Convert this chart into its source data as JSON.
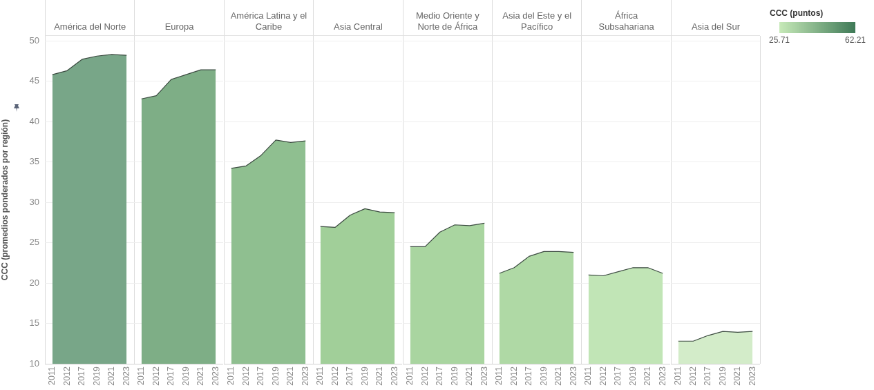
{
  "chart_data": [
    {
      "type": "area",
      "title": "América del Norte",
      "ylabel": "CCC (promedios ponderados por región)",
      "categories": [
        "2011",
        "2012",
        "2017",
        "2019",
        "2021",
        "2023"
      ],
      "values": [
        45.8,
        46.3,
        47.7,
        48.1,
        48.3,
        48.2
      ],
      "color": "#78a688",
      "ylim": [
        10,
        50.6
      ],
      "yticks": [
        10,
        15,
        20,
        25,
        30,
        35,
        40,
        45,
        50
      ],
      "grid": "y"
    },
    {
      "type": "area",
      "title": "Europa",
      "categories": [
        "2011",
        "2012",
        "2017",
        "2019",
        "2021",
        "2023"
      ],
      "values": [
        42.8,
        43.2,
        45.2,
        45.8,
        46.4,
        46.4
      ],
      "color": "#7eae86",
      "ylim": [
        10,
        50.6
      ],
      "yticks": [
        10,
        15,
        20,
        25,
        30,
        35,
        40,
        45,
        50
      ],
      "grid": "y",
      "tick_labels": "x"
    },
    {
      "type": "area",
      "title": "América Latina y el Caribe",
      "categories": [
        "2011",
        "2012",
        "2017",
        "2019",
        "2021",
        "2023"
      ],
      "values": [
        34.2,
        34.5,
        35.8,
        37.7,
        37.4,
        37.6
      ],
      "color": "#8fbf90",
      "ylim": [
        10,
        50.6
      ],
      "yticks": [
        10,
        15,
        20,
        25,
        30,
        35,
        40,
        45,
        50
      ],
      "grid": "y",
      "tick_labels": "x"
    },
    {
      "type": "area",
      "title": "Asia Central",
      "categories": [
        "2011",
        "2012",
        "2017",
        "2019",
        "2021",
        "2023"
      ],
      "values": [
        27.0,
        26.9,
        28.4,
        29.2,
        28.8,
        28.7
      ],
      "color": "#a1cf99",
      "ylim": [
        10,
        50.6
      ],
      "yticks": [
        10,
        15,
        20,
        25,
        30,
        35,
        40,
        45,
        50
      ],
      "grid": "y",
      "tick_labels": "x"
    },
    {
      "type": "area",
      "title": "Medio Oriente y Norte de África",
      "categories": [
        "2011",
        "2012",
        "2017",
        "2019",
        "2021",
        "2023"
      ],
      "values": [
        24.5,
        24.5,
        26.3,
        27.2,
        27.1,
        27.4
      ],
      "color": "#a9d5a0",
      "ylim": [
        10,
        50.6
      ],
      "yticks": [
        10,
        15,
        20,
        25,
        30,
        35,
        40,
        45,
        50
      ],
      "grid": "y",
      "tick_labels": "x"
    },
    {
      "type": "area",
      "title": "Asia del Este y el Pacífico",
      "categories": [
        "2011",
        "2012",
        "2017",
        "2019",
        "2021",
        "2023"
      ],
      "values": [
        21.2,
        21.9,
        23.3,
        23.9,
        23.9,
        23.8
      ],
      "color": "#afd9a5",
      "ylim": [
        10,
        50.6
      ],
      "yticks": [
        10,
        15,
        20,
        25,
        30,
        35,
        40,
        45,
        50
      ],
      "grid": "y",
      "tick_labels": "x"
    },
    {
      "type": "area",
      "title": "África Subsahariana",
      "categories": [
        "2011",
        "2012",
        "2017",
        "2019",
        "2021",
        "2023"
      ],
      "values": [
        21.0,
        20.9,
        21.4,
        21.9,
        21.9,
        21.2
      ],
      "color": "#c1e5b6",
      "ylim": [
        10,
        50.6
      ],
      "yticks": [
        10,
        15,
        20,
        25,
        30,
        35,
        40,
        45,
        50
      ],
      "grid": "y",
      "tick_labels": "x"
    },
    {
      "type": "area",
      "title": "Asia del Sur",
      "categories": [
        "2011",
        "2012",
        "2017",
        "2019",
        "2021",
        "2023"
      ],
      "values": [
        12.8,
        12.8,
        13.5,
        14.0,
        13.9,
        14.0
      ],
      "color": "#d3ecc9",
      "ylim": [
        10,
        50.6
      ],
      "yticks": [
        10,
        15,
        20,
        25,
        30,
        35,
        40,
        45,
        50
      ],
      "grid": "y",
      "tick_labels": "x",
      "clabel": "CCC (puntos)",
      "clim": [
        25.71,
        62.21
      ],
      "cticks": [
        25.71,
        62.21
      ]
    }
  ]
}
